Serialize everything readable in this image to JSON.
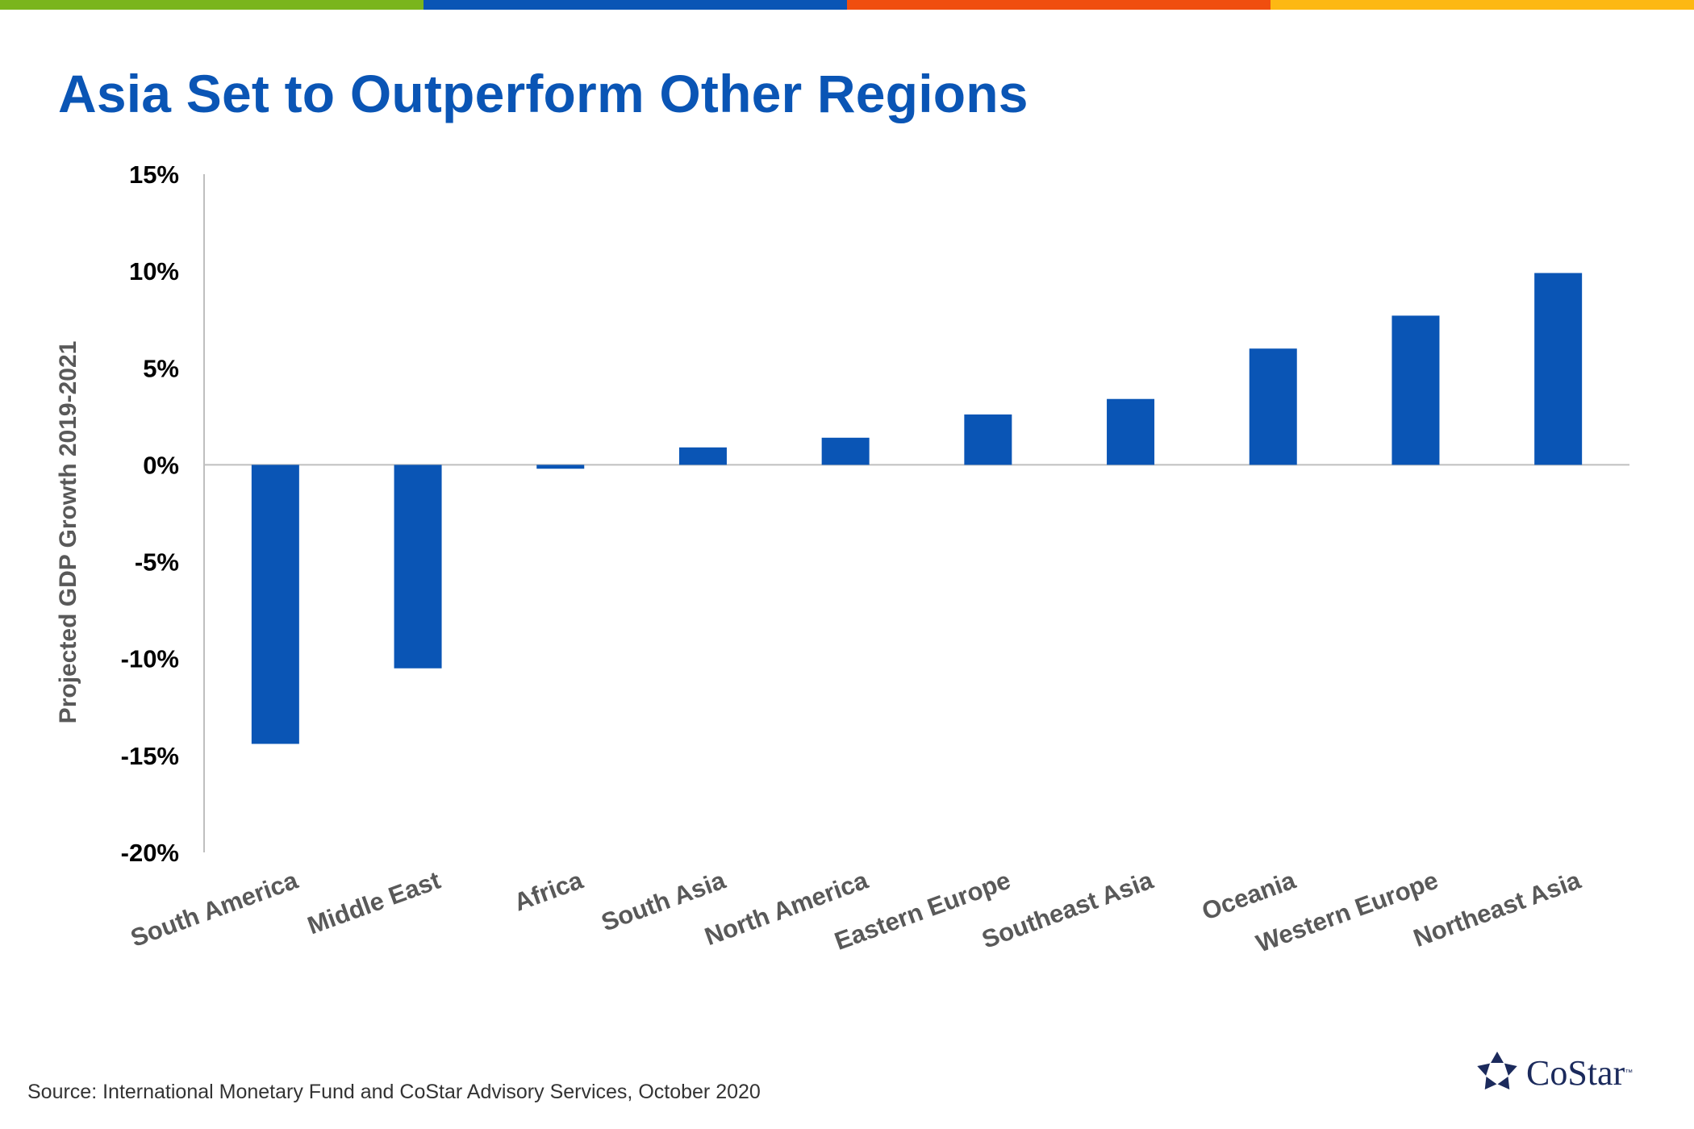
{
  "colors": {
    "title": "#0A55B5",
    "bar": "#0A55B5",
    "axis_text": "#000000",
    "category_text": "#595959",
    "axis_label": "#595959",
    "axis_line": "#BFBFBF",
    "stripes": [
      "#7AB51D",
      "#0A55B5",
      "#F04E0F",
      "#FDB813"
    ],
    "logo": "#1B2A5C"
  },
  "slide": {
    "title": "Asia Set to Outperform Other Regions",
    "source": "Source: International Monetary Fund and CoStar Advisory Services, October 2020"
  },
  "logo": {
    "text": "CoStar",
    "tm": "™",
    "icon": "costar-star-icon"
  },
  "chart_data": {
    "type": "bar",
    "title": "",
    "ylabel": "Projected GDP Growth 2019-2021",
    "xlabel": "",
    "ylim": [
      -20,
      15
    ],
    "yticks": [
      15,
      10,
      5,
      0,
      -5,
      -10,
      -15,
      -20
    ],
    "ytick_labels": [
      "15%",
      "10%",
      "5%",
      "0%",
      "-5%",
      "-10%",
      "-15%",
      "-20%"
    ],
    "categories": [
      "South America",
      "Middle East",
      "Africa",
      "South Asia",
      "North America",
      "Eastern Europe",
      "Southeast Asia",
      "Oceania",
      "Western Europe",
      "Northeast Asia"
    ],
    "values": [
      -14.4,
      -10.5,
      -0.2,
      0.9,
      1.4,
      2.6,
      3.4,
      6.0,
      7.7,
      9.9
    ],
    "grid": false,
    "legend": "none"
  }
}
